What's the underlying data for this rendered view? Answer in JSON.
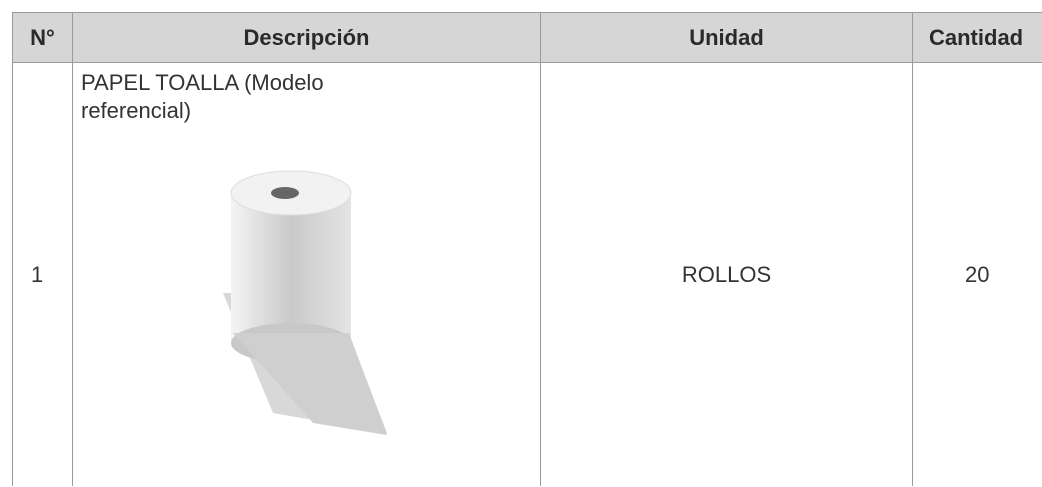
{
  "table": {
    "headers": [
      "N°",
      "Descripción",
      "Unidad",
      "Cantidad"
    ],
    "rows": [
      [
        1,
        "PAPEL TOALLA (Modelo referencial)",
        "ROLLOS",
        20
      ]
    ]
  }
}
